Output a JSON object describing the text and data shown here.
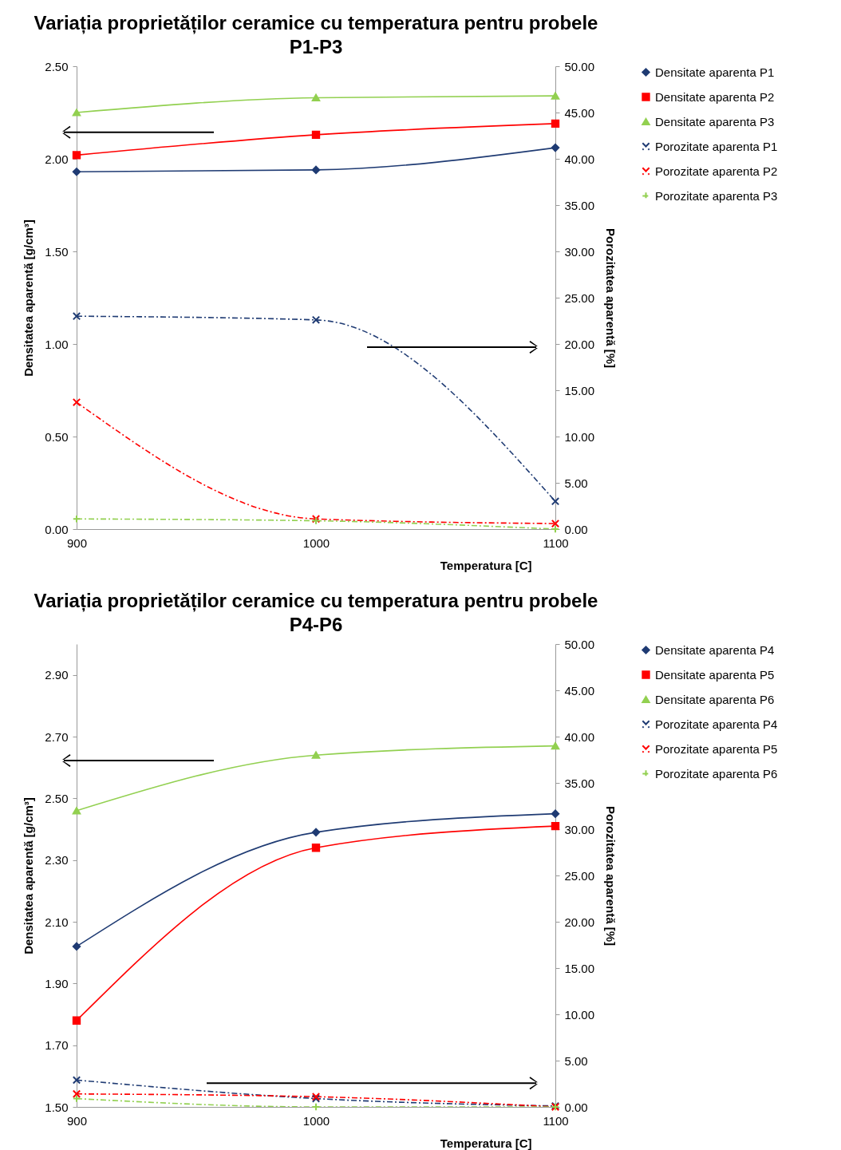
{
  "chart_data": [
    {
      "type": "line",
      "title": "Variația proprietăților ceramice cu temperatura pentru probele P1-P3",
      "xlabel": "Temperatura [C]",
      "ylabel": "Densitatea aparentă [g/cm³]",
      "y2label": "Porozitatea aparentă [%]",
      "legend": "right",
      "x": [
        900,
        1000,
        1100
      ],
      "xlim": [
        900,
        1100
      ],
      "xticks": [
        900,
        1000,
        1100
      ],
      "ylim": [
        0,
        2.5
      ],
      "yticks": [
        {
          "value": 0,
          "label": "0.00"
        },
        {
          "value": 0.5,
          "label": "0.50"
        },
        {
          "value": 1,
          "label": "1.00"
        },
        {
          "value": 1.5,
          "label": "1.50"
        },
        {
          "value": 2,
          "label": "2.00"
        },
        {
          "value": 2.5,
          "label": "2.50"
        }
      ],
      "y2lim": [
        0,
        50
      ],
      "y2ticks": [
        {
          "value": 0,
          "label": "0.00"
        },
        {
          "value": 5,
          "label": "5.00"
        },
        {
          "value": 10,
          "label": "10.00"
        },
        {
          "value": 15,
          "label": "15.00"
        },
        {
          "value": 20,
          "label": "20.00"
        },
        {
          "value": 25,
          "label": "25.00"
        },
        {
          "value": 30,
          "label": "30.00"
        },
        {
          "value": 35,
          "label": "35.00"
        },
        {
          "value": 40,
          "label": "40.00"
        },
        {
          "value": 45,
          "label": "45.00"
        },
        {
          "value": 50,
          "label": "50.00"
        }
      ],
      "series": [
        {
          "name": "Densitate aparenta P1",
          "color": "#1f3b73",
          "values": [
            1.93,
            1.94,
            2.06
          ],
          "marker": "diamond",
          "line_style": "solid"
        },
        {
          "name": "Densitate aparenta P2",
          "color": "#ff0000",
          "values": [
            2.02,
            2.13,
            2.19
          ],
          "marker": "square",
          "line_style": "solid"
        },
        {
          "name": "Densitate aparenta P3",
          "color": "#92d050",
          "values": [
            2.25,
            2.33,
            2.34
          ],
          "marker": "triangle",
          "line_style": "solid"
        },
        {
          "name": "Porozitate aparenta P1",
          "color": "#1f3b73",
          "values": [
            23.0,
            22.6,
            3.0
          ],
          "marker": "cross",
          "line_style": "dashed",
          "axis": "y2"
        },
        {
          "name": "Porozitate aparenta P2",
          "color": "#ff0000",
          "values": [
            13.7,
            1.1,
            0.6
          ],
          "marker": "cross",
          "line_style": "dashed",
          "axis": "y2"
        },
        {
          "name": "Porozitate aparenta P3",
          "color": "#92d050",
          "values": [
            1.1,
            0.9,
            0.0
          ],
          "marker": "plus",
          "line_style": "dashed",
          "axis": "y2"
        }
      ]
    },
    {
      "type": "line",
      "title": "Variația proprietăților ceramice cu temperatura pentru probele P4-P6",
      "xlabel": "Temperatura [C]",
      "ylabel": "Densitatea aparentă [g/cm³]",
      "y2label": "Porozitatea aparentă [%]",
      "legend": "right",
      "x": [
        900,
        1000,
        1100
      ],
      "xlim": [
        900,
        1100
      ],
      "xticks": [
        900,
        1000,
        1100
      ],
      "ylim": [
        1.5,
        3.0
      ],
      "yticks": [
        {
          "value": 1.5,
          "label": "1.50"
        },
        {
          "value": 1.7,
          "label": "1.70"
        },
        {
          "value": 1.9,
          "label": "1.90"
        },
        {
          "value": 2.1,
          "label": "2.10"
        },
        {
          "value": 2.3,
          "label": "2.30"
        },
        {
          "value": 2.5,
          "label": "2.50"
        },
        {
          "value": 2.7,
          "label": "2.70"
        },
        {
          "value": 2.9,
          "label": "2.90"
        }
      ],
      "y2lim": [
        0,
        50
      ],
      "y2ticks": [
        {
          "value": 0,
          "label": "0.00"
        },
        {
          "value": 5,
          "label": "5.00"
        },
        {
          "value": 10,
          "label": "10.00"
        },
        {
          "value": 15,
          "label": "15.00"
        },
        {
          "value": 20,
          "label": "20.00"
        },
        {
          "value": 25,
          "label": "25.00"
        },
        {
          "value": 30,
          "label": "30.00"
        },
        {
          "value": 35,
          "label": "35.00"
        },
        {
          "value": 40,
          "label": "40.00"
        },
        {
          "value": 45,
          "label": "45.00"
        },
        {
          "value": 50,
          "label": "50.00"
        }
      ],
      "series": [
        {
          "name": "Densitate aparenta P4",
          "color": "#1f3b73",
          "values": [
            2.02,
            2.39,
            2.45
          ],
          "marker": "diamond",
          "line_style": "solid"
        },
        {
          "name": "Densitate aparenta P5",
          "color": "#ff0000",
          "values": [
            1.78,
            2.34,
            2.41
          ],
          "marker": "square",
          "line_style": "solid"
        },
        {
          "name": "Densitate aparenta P6",
          "color": "#92d050",
          "values": [
            2.46,
            2.64,
            2.67
          ],
          "marker": "triangle",
          "line_style": "solid"
        },
        {
          "name": "Porozitate aparenta P4",
          "color": "#1f3b73",
          "values": [
            2.9,
            0.9,
            0.1
          ],
          "marker": "cross",
          "line_style": "dashed",
          "axis": "y2"
        },
        {
          "name": "Porozitate aparenta P5",
          "color": "#ff0000",
          "values": [
            1.4,
            1.1,
            0.0
          ],
          "marker": "cross",
          "line_style": "dashed",
          "axis": "y2"
        },
        {
          "name": "Porozitate aparenta P6",
          "color": "#92d050",
          "values": [
            0.9,
            0.0,
            0.0
          ],
          "marker": "plus",
          "line_style": "dashed",
          "axis": "y2"
        }
      ]
    }
  ]
}
